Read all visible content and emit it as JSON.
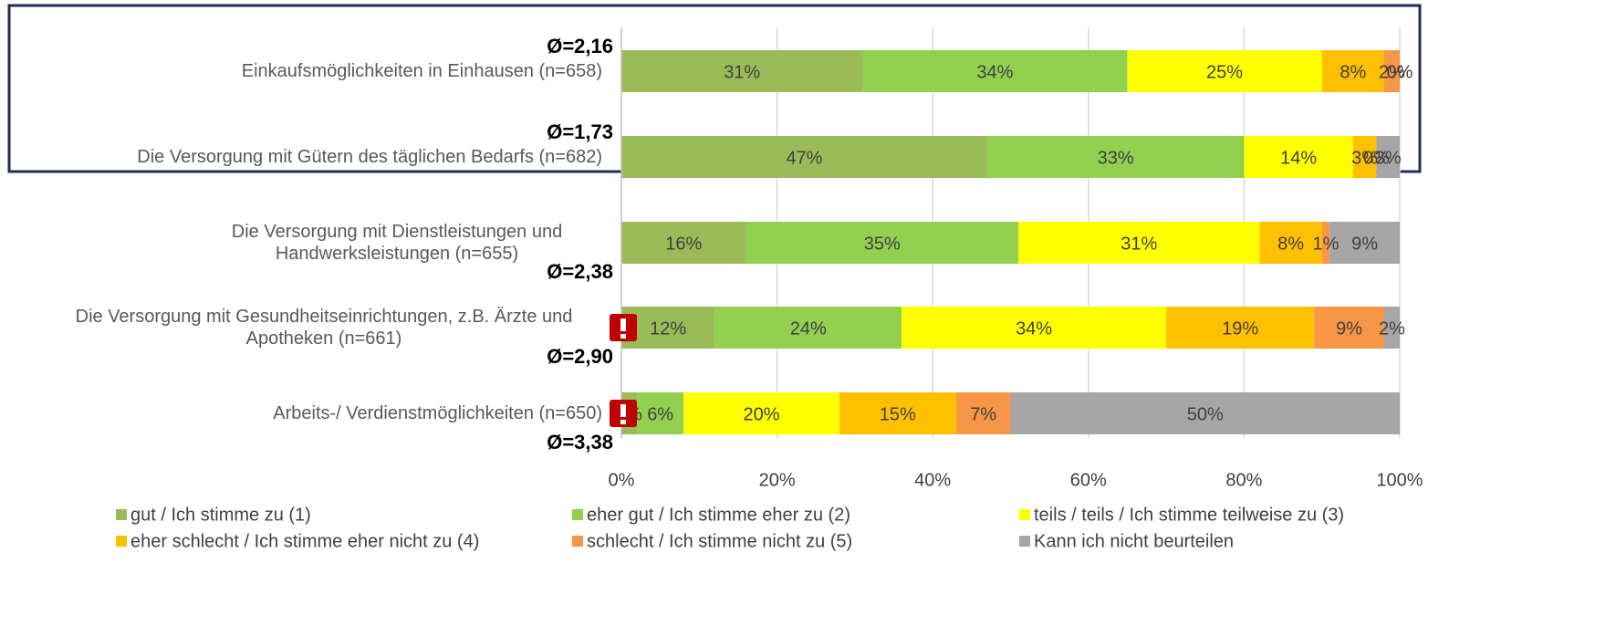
{
  "chart_data": {
    "type": "stacked_bar_horizontal",
    "categories": [
      "Einkaufsmöglichkeiten in Einhausen (n=658)",
      "Die Versorgung mit Gütern des täglichen Bedarfs (n=682)",
      "Die Versorgung mit Dienstleistungen und Handwerksleistungen (n=655)",
      "Die Versorgung mit Gesundheitseinrichtungen, z.B. Ärzte und Apotheken (n=661)",
      "Arbeits-/ Verdienstmöglichkeiten (n=650)"
    ],
    "averages": [
      "Ø=2,16",
      "Ø=1,73",
      "Ø=2,38",
      "Ø=2,90",
      "Ø=3,38"
    ],
    "series": [
      {
        "name": "gut / Ich stimme zu (1)",
        "color": "#9bbb59",
        "values": [
          31,
          47,
          16,
          12,
          2
        ],
        "value_labels": [
          "31%",
          "47%",
          "16%",
          "12%",
          "2%"
        ]
      },
      {
        "name": "eher gut / Ich stimme eher zu (2)",
        "color": "#92d050",
        "values": [
          34,
          33,
          35,
          24,
          6
        ],
        "value_labels": [
          "34%",
          "33%",
          "35%",
          "24%",
          "6%"
        ]
      },
      {
        "name": "teils / teils / Ich stimme teilweise zu (3)",
        "color": "#ffff00",
        "values": [
          25,
          14,
          31,
          34,
          20
        ],
        "value_labels": [
          "25%",
          "14%",
          "31%",
          "34%",
          "20%"
        ]
      },
      {
        "name": "eher schlecht / Ich stimme eher nicht zu (4)",
        "color": "#ffc000",
        "values": [
          8,
          3,
          8,
          19,
          15
        ],
        "value_labels": [
          "8%",
          "3%",
          "8%",
          "19%",
          "15%"
        ]
      },
      {
        "name": "schlecht / Ich stimme nicht zu (5)",
        "color": "#f79646",
        "values": [
          2,
          0,
          1,
          9,
          7
        ],
        "value_labels": [
          "2%",
          "0%",
          "1%",
          "9%",
          "7%"
        ]
      },
      {
        "name": "Kann ich nicht beurteilen",
        "color": "#a6a6a6",
        "values": [
          0,
          3,
          9,
          2,
          50
        ],
        "value_labels": [
          "0%",
          "3%",
          "9%",
          "2%",
          "50%"
        ]
      }
    ],
    "xlim": [
      0,
      100
    ],
    "xticks": [
      {
        "value": 0,
        "label": "0%"
      },
      {
        "value": 20,
        "label": "20%"
      },
      {
        "value": 40,
        "label": "40%"
      },
      {
        "value": 60,
        "label": "60%"
      },
      {
        "value": 80,
        "label": "80%"
      },
      {
        "value": 100,
        "label": "100%"
      }
    ],
    "grid": true
  }
}
